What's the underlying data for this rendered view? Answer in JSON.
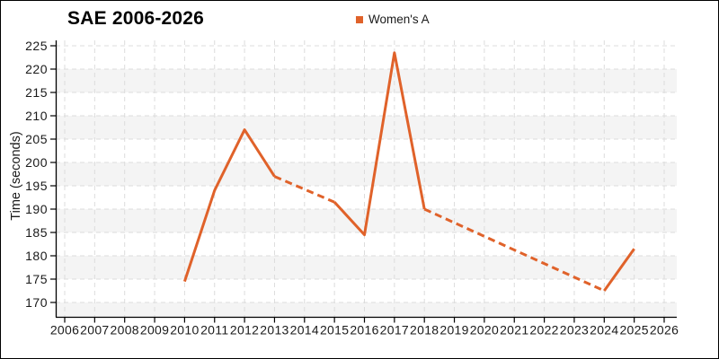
{
  "title": "SAE 2006-2026",
  "legend": {
    "label": "Women's A",
    "marker_color": "#e0622a"
  },
  "colors": {
    "line": "#e0622a",
    "grid": "#dcdcdc",
    "band": "#f4f4f4",
    "axis": "#000000",
    "text": "#1a1a1a",
    "background": "#ffffff"
  },
  "chart_data": {
    "type": "line",
    "title": "SAE 2006-2026",
    "xlabel": "",
    "ylabel": "Time (seconds)",
    "legend_position": "top-center",
    "grid": "dashed-both-axes",
    "background_bands": "alternating-horizontal",
    "x_ticks": [
      2006,
      2007,
      2008,
      2009,
      2010,
      2011,
      2012,
      2013,
      2014,
      2015,
      2016,
      2017,
      2018,
      2019,
      2020,
      2021,
      2022,
      2023,
      2024,
      2025,
      2026
    ],
    "y_ticks": [
      170,
      175,
      180,
      185,
      190,
      195,
      200,
      205,
      210,
      215,
      220,
      225
    ],
    "xlim": [
      2005.7,
      2026.4
    ],
    "ylim": [
      167,
      226
    ],
    "series": [
      {
        "name": "Women's A",
        "points": [
          {
            "x": 2010,
            "y": 174.5
          },
          {
            "x": 2011,
            "y": 194
          },
          {
            "x": 2012,
            "y": 207
          },
          {
            "x": 2013,
            "y": 197
          },
          {
            "x": 2015,
            "y": 191.5
          },
          {
            "x": 2016,
            "y": 184.5
          },
          {
            "x": 2017,
            "y": 223.5
          },
          {
            "x": 2018,
            "y": 190
          },
          {
            "x": 2024,
            "y": 172.5
          },
          {
            "x": 2025,
            "y": 181.5
          }
        ],
        "segments": [
          {
            "from": 2010,
            "to": 2013,
            "style": "solid"
          },
          {
            "from": 2013,
            "to": 2015,
            "style": "dashed"
          },
          {
            "from": 2015,
            "to": 2018,
            "style": "solid"
          },
          {
            "from": 2018,
            "to": 2024,
            "style": "dashed"
          },
          {
            "from": 2024,
            "to": 2025,
            "style": "solid"
          }
        ]
      }
    ]
  }
}
